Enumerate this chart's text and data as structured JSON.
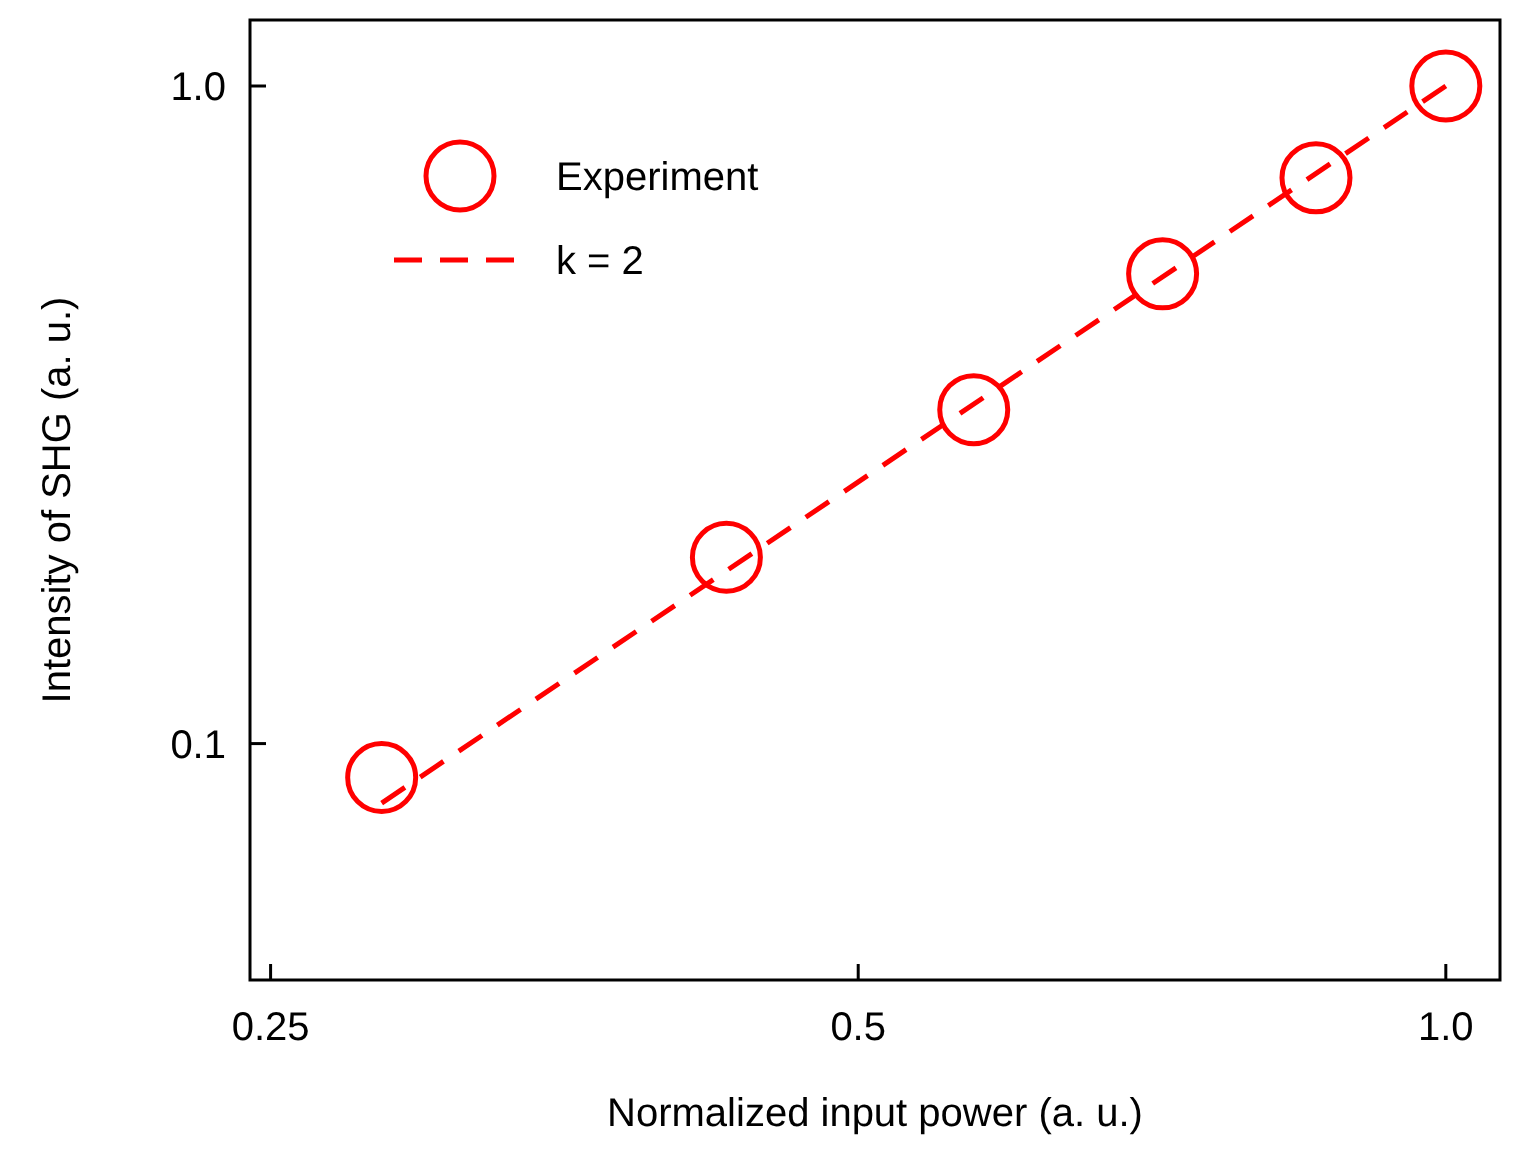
{
  "chart_data": {
    "type": "scatter",
    "xlabel": "Normalized input power (a. u.)",
    "ylabel": "Intensity of SHG (a. u.)",
    "log": "xy",
    "xlim": [
      0.244,
      1.066
    ],
    "ylim": [
      0.0437,
      1.26
    ],
    "xticks": [
      0.25,
      0.5,
      {
        "value": 1,
        "label": "1.0"
      }
    ],
    "yticks": [
      0.1,
      {
        "value": 1,
        "label": "1.0"
      }
    ],
    "grid": false,
    "legend": "top left",
    "marker": "circle",
    "series": [
      {
        "name": "Experiment",
        "color": "#ff0000",
        "x": [
          0.285,
          0.428,
          0.573,
          0.716,
          0.858,
          1.0
        ],
        "values": [
          0.0888,
          0.192,
          0.322,
          0.518,
          0.725,
          1.0
        ]
      },
      {
        "name": "k = 2",
        "type": "line",
        "line_style": "dashed",
        "marker": "none",
        "color": "#ff0000",
        "x": [
          0.285,
          1.0
        ],
        "values": [
          0.0812,
          1.0
        ]
      }
    ]
  }
}
